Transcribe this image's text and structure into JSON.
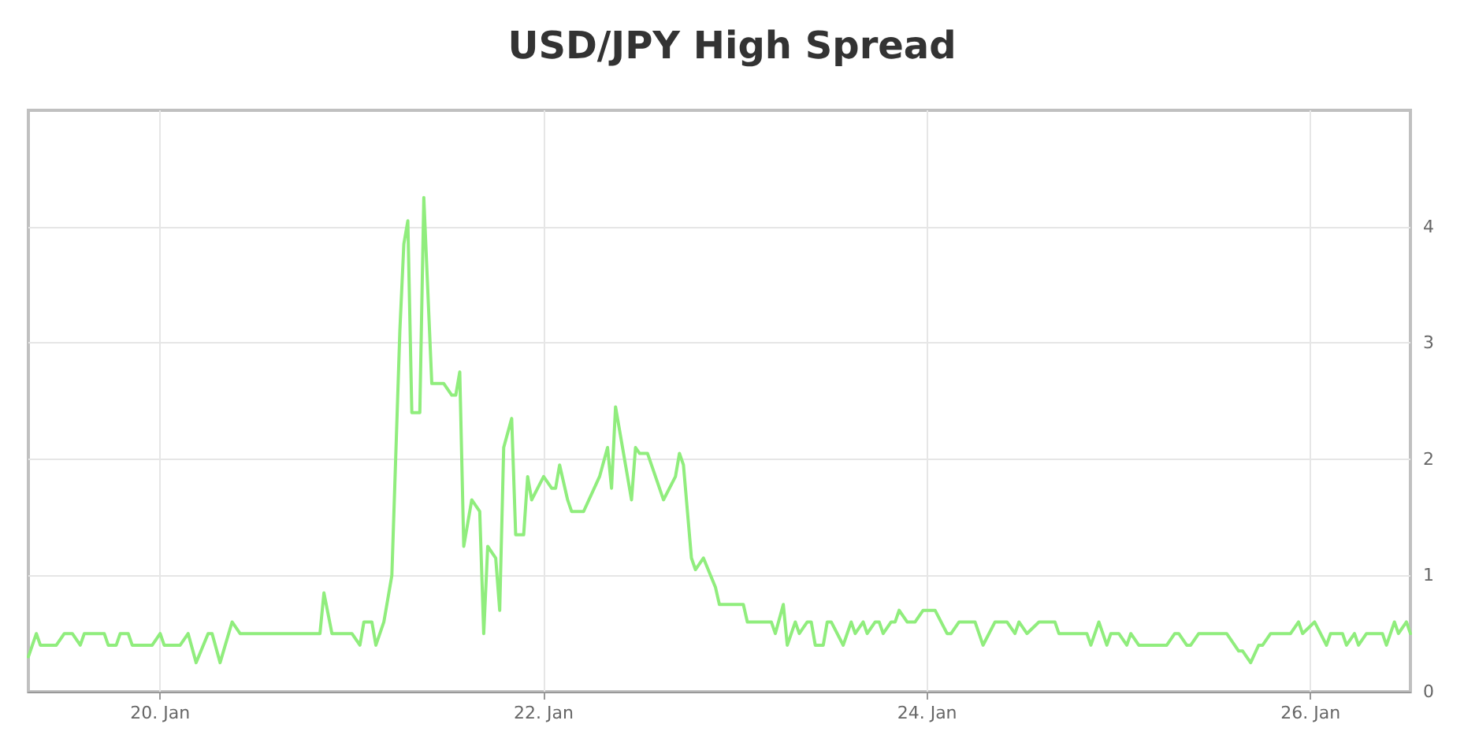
{
  "chart_data": {
    "type": "line",
    "title": "USD/JPY High Spread",
    "x": [
      "--01-19T07:30",
      "--01-19T08:30",
      "--01-19T09:00",
      "--01-19T11:00",
      "--01-19T12:00",
      "--01-19T13:00",
      "--01-19T14:00",
      "--01-19T14:30",
      "--01-19T17:00",
      "--01-19T17:30",
      "--01-19T18:30",
      "--01-19T19:00",
      "--01-19T20:00",
      "--01-19T20:30",
      "--01-19T23:00",
      "--01-20T00:00",
      "--01-20T00:30",
      "--01-20T02:30",
      "--01-20T03:30",
      "--01-20T04:30",
      "--01-20T06:00",
      "--01-20T06:30",
      "--01-20T07:30",
      "--01-20T09:00",
      "--01-20T10:00",
      "--01-20T20:00",
      "--01-20T20:30",
      "--01-20T21:30",
      "--01-21T00:00",
      "--01-21T01:00",
      "--01-21T01:30",
      "--01-21T02:30",
      "--01-21T03:00",
      "--01-21T04:00",
      "--01-21T05:00",
      "--01-21T06:00",
      "--01-21T06:30",
      "--01-21T07:00",
      "--01-21T07:30",
      "--01-21T08:30",
      "--01-21T09:00",
      "--01-21T10:00",
      "--01-21T11:30",
      "--01-21T12:30",
      "--01-21T13:00",
      "--01-21T13:30",
      "--01-21T14:00",
      "--01-21T15:00",
      "--01-21T16:00",
      "--01-21T16:30",
      "--01-21T17:00",
      "--01-21T18:00",
      "--01-21T18:30",
      "--01-21T19:00",
      "--01-21T20:00",
      "--01-21T20:30",
      "--01-21T21:30",
      "--01-21T22:00",
      "--01-21T22:30",
      "--01-22T00:00",
      "--01-22T01:00",
      "--01-22T01:30",
      "--01-22T02:00",
      "--01-22T03:00",
      "--01-22T03:30",
      "--01-22T05:00",
      "--01-22T07:00",
      "--01-22T08:00",
      "--01-22T08:30",
      "--01-22T09:00",
      "--01-22T11:00",
      "--01-22T11:30",
      "--01-22T12:00",
      "--01-22T13:00",
      "--01-22T14:00",
      "--01-22T15:00",
      "--01-22T16:30",
      "--01-22T17:00",
      "--01-22T17:30",
      "--01-22T18:30",
      "--01-22T19:00",
      "--01-22T20:00",
      "--01-22T21:30",
      "--01-22T22:00",
      "--01-23T01:00",
      "--01-23T01:30",
      "--01-23T04:30",
      "--01-23T05:00",
      "--01-23T06:00",
      "--01-23T06:30",
      "--01-23T07:30",
      "--01-23T08:00",
      "--01-23T09:00",
      "--01-23T09:30",
      "--01-23T10:00",
      "--01-23T11:00",
      "--01-23T11:30",
      "--01-23T12:00",
      "--01-23T13:30",
      "--01-23T14:30",
      "--01-23T15:00",
      "--01-23T16:00",
      "--01-23T16:30",
      "--01-23T17:30",
      "--01-23T18:00",
      "--01-23T18:30",
      "--01-23T19:30",
      "--01-23T20:00",
      "--01-23T20:30",
      "--01-23T21:30",
      "--01-23T22:30",
      "--01-23T23:30",
      "--01-24T01:00",
      "--01-24T02:30",
      "--01-24T03:00",
      "--01-24T04:00",
      "--01-24T06:00",
      "--01-24T07:00",
      "--01-24T08:30",
      "--01-24T10:00",
      "--01-24T11:00",
      "--01-24T11:30",
      "--01-24T12:30",
      "--01-24T14:00",
      "--01-24T16:00",
      "--01-24T16:30",
      "--01-24T20:00",
      "--01-24T20:30",
      "--01-24T21:30",
      "--01-24T22:30",
      "--01-24T23:00",
      "--01-25T00:00",
      "--01-25T01:00",
      "--01-25T01:30",
      "--01-25T02:30",
      "--01-25T06:00",
      "--01-25T07:00",
      "--01-25T07:30",
      "--01-25T08:30",
      "--01-25T09:00",
      "--01-25T10:00",
      "--01-25T13:30",
      "--01-25T15:00",
      "--01-25T15:30",
      "--01-25T16:30",
      "--01-25T17:30",
      "--01-25T18:00",
      "--01-25T19:00",
      "--01-25T21:30",
      "--01-25T22:30",
      "--01-25T23:00",
      "--01-26T00:30",
      "--01-26T02:00",
      "--01-26T02:30",
      "--01-26T04:00",
      "--01-26T04:30",
      "--01-26T05:30",
      "--01-26T06:00",
      "--01-26T07:00",
      "--01-26T09:00",
      "--01-26T09:30",
      "--01-26T10:30",
      "--01-26T11:00",
      "--01-26T12:00",
      "--01-26T12:30"
    ],
    "series": [
      {
        "color": "#90ed7d",
        "values": [
          0.3,
          0.5,
          0.4,
          0.4,
          0.5,
          0.5,
          0.4,
          0.5,
          0.5,
          0.4,
          0.4,
          0.5,
          0.5,
          0.4,
          0.4,
          0.5,
          0.4,
          0.4,
          0.5,
          0.25,
          0.5,
          0.5,
          0.25,
          0.6,
          0.5,
          0.5,
          0.85,
          0.5,
          0.5,
          0.4,
          0.6,
          0.6,
          0.4,
          0.6,
          1.0,
          3.1,
          3.85,
          4.05,
          2.4,
          2.4,
          4.25,
          2.65,
          2.65,
          2.55,
          2.55,
          2.75,
          1.25,
          1.65,
          1.55,
          0.5,
          1.25,
          1.15,
          0.7,
          2.1,
          2.35,
          1.35,
          1.35,
          1.85,
          1.65,
          1.85,
          1.75,
          1.75,
          1.95,
          1.65,
          1.55,
          1.55,
          1.85,
          2.1,
          1.75,
          2.45,
          1.65,
          2.1,
          2.05,
          2.05,
          1.85,
          1.65,
          1.85,
          2.05,
          1.95,
          1.15,
          1.05,
          1.15,
          0.9,
          0.75,
          0.75,
          0.6,
          0.6,
          0.5,
          0.75,
          0.4,
          0.6,
          0.5,
          0.6,
          0.6,
          0.4,
          0.4,
          0.6,
          0.6,
          0.4,
          0.6,
          0.5,
          0.6,
          0.5,
          0.6,
          0.6,
          0.5,
          0.6,
          0.6,
          0.7,
          0.6,
          0.6,
          0.7,
          0.7,
          0.5,
          0.5,
          0.6,
          0.6,
          0.4,
          0.6,
          0.6,
          0.5,
          0.6,
          0.5,
          0.6,
          0.6,
          0.5,
          0.5,
          0.4,
          0.6,
          0.4,
          0.5,
          0.5,
          0.4,
          0.5,
          0.4,
          0.4,
          0.5,
          0.5,
          0.4,
          0.4,
          0.5,
          0.5,
          0.35,
          0.35,
          0.25,
          0.4,
          0.4,
          0.5,
          0.5,
          0.6,
          0.5,
          0.6,
          0.4,
          0.5,
          0.5,
          0.4,
          0.5,
          0.4,
          0.5,
          0.5,
          0.4,
          0.6,
          0.5,
          0.6,
          0.5
        ]
      }
    ],
    "xlim": [
      "--01-19T07:30",
      "--01-26T12:30"
    ],
    "xticks": [
      {
        "value": "--01-20",
        "label": "20. Jan"
      },
      {
        "value": "--01-22",
        "label": "22. Jan"
      },
      {
        "value": "--01-24",
        "label": "24. Jan"
      },
      {
        "value": "--01-26",
        "label": "26. Jan"
      }
    ],
    "ylim": [
      0,
      5
    ],
    "yticks": [
      0,
      1,
      2,
      3,
      4
    ],
    "grid": true,
    "marker": "none",
    "line_style": "solid"
  }
}
